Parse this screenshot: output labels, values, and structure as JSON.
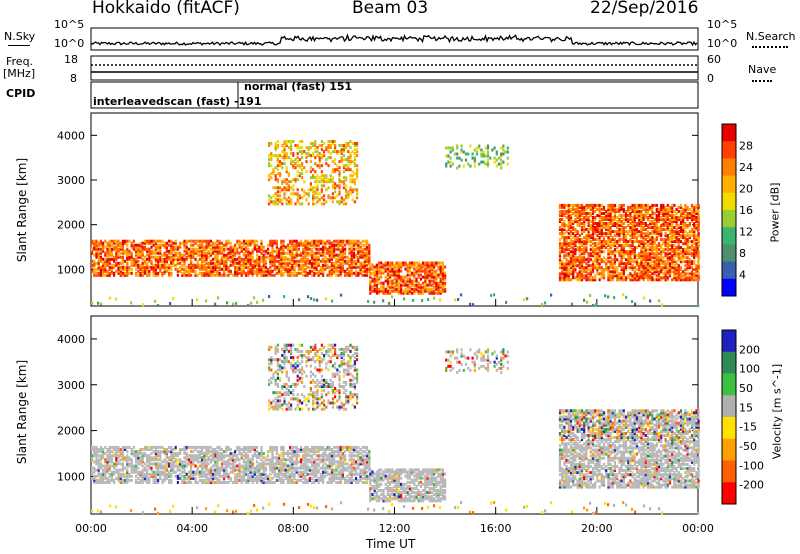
{
  "header": {
    "station": "Hokkaido (fitACF)",
    "beam": "Beam 03",
    "date": "22/Sep/2016"
  },
  "noise_panel": {
    "left_label": "N.Sky",
    "right_label": "N.Search",
    "left_ticks": [
      "10^5",
      "10^0"
    ],
    "right_ticks": [
      "10^5",
      "10^0"
    ]
  },
  "freq_panel": {
    "left_label_1": "Freq.",
    "left_label_2": "[MHz]",
    "left_ticks": [
      "18",
      "8"
    ],
    "right_label": "Nave",
    "right_ticks": [
      "60",
      "0"
    ]
  },
  "cpid_panel": {
    "label": "CPID",
    "mode_1": "interleavedscan (fast)  -191",
    "mode_2": "normal (fast) 151"
  },
  "chart_data": [
    {
      "type": "heatmap",
      "title": "",
      "xlabel": "",
      "ylabel": "Slant Range [km]",
      "x_ticks": [
        "00:00",
        "04:00",
        "08:00",
        "12:00",
        "16:00",
        "20:00",
        "00:00"
      ],
      "y_ticks": [
        "1000",
        "2000",
        "3000",
        "4000"
      ],
      "xlim_hours": [
        0,
        24
      ],
      "ylim_km": [
        180,
        4500
      ],
      "colorbar": {
        "label": "Power [dB]",
        "ticks": [
          "28",
          "24",
          "20",
          "16",
          "12",
          "8",
          "4"
        ],
        "colors": [
          "#e60000",
          "#ff4000",
          "#ff8000",
          "#ffb000",
          "#f0dc00",
          "#9acd32",
          "#3cb371",
          "#4f8f6b",
          "#3a5fb0",
          "#0000ff"
        ]
      },
      "echo_bands": [
        {
          "hour_start": 0,
          "hour_end": 11,
          "range_start_km": 900,
          "range_end_km": 1700,
          "level": "strong"
        },
        {
          "hour_start": 7,
          "hour_end": 10.5,
          "range_start_km": 2500,
          "range_end_km": 3900,
          "level": "medium"
        },
        {
          "hour_start": 11,
          "hour_end": 14,
          "range_start_km": 500,
          "range_end_km": 1200,
          "level": "strong"
        },
        {
          "hour_start": 14,
          "hour_end": 16.5,
          "range_start_km": 3300,
          "range_end_km": 3800,
          "level": "weak"
        },
        {
          "hour_start": 18.5,
          "hour_end": 24,
          "range_start_km": 800,
          "range_end_km": 2500,
          "level": "strong"
        }
      ]
    },
    {
      "type": "heatmap",
      "title": "",
      "xlabel": "Time UT",
      "ylabel": "Slant Range [km]",
      "x_ticks": [
        "00:00",
        "04:00",
        "08:00",
        "12:00",
        "16:00",
        "20:00",
        "00:00"
      ],
      "y_ticks": [
        "1000",
        "2000",
        "3000",
        "4000"
      ],
      "xlim_hours": [
        0,
        24
      ],
      "ylim_km": [
        180,
        4500
      ],
      "colorbar": {
        "label": "Velocity [m s^-1]",
        "ticks": [
          "200",
          "100",
          "50",
          "15",
          "-15",
          "-50",
          "-100",
          "-200"
        ],
        "colors": [
          "#2020c0",
          "#2e8b57",
          "#40c040",
          "#b0b0b0",
          "#ffe000",
          "#ffa000",
          "#ff6000",
          "#ff0000"
        ]
      },
      "ground_scatter_color": "#b8b8b8"
    }
  ]
}
